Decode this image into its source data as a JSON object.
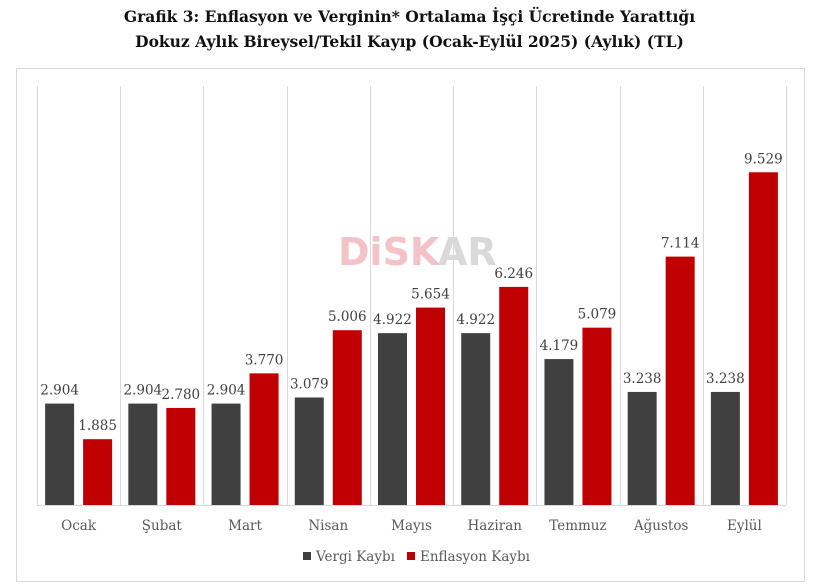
{
  "title": {
    "line1": "Grafik 3: Enflasyon ve Verginin* Ortalama İşçi Ücretinde Yarattığı",
    "line2": "Dokuz Aylık Bireysel/Tekil Kayıp (Ocak-Eylül 2025) (Aylık) (TL)"
  },
  "watermark": {
    "part1": "DiSK",
    "part2": "AR"
  },
  "chart_data": {
    "type": "bar",
    "categories": [
      "Ocak",
      "Şubat",
      "Mart",
      "Nisan",
      "Mayıs",
      "Haziran",
      "Temmuz",
      "Ağustos",
      "Eylül"
    ],
    "series": [
      {
        "name": "Vergi Kaybı",
        "color": "#404040",
        "values": [
          2904,
          2904,
          2904,
          3079,
          4922,
          4922,
          4179,
          3238,
          3238
        ],
        "labels": [
          "2.904",
          "2.904",
          "2.904",
          "3.079",
          "4.922",
          "4.922",
          "4.179",
          "3.238",
          "3.238"
        ]
      },
      {
        "name": "Enflasyon Kaybı",
        "color": "#c00000",
        "values": [
          1885,
          2780,
          3770,
          5006,
          5654,
          6246,
          5079,
          7114,
          9529
        ],
        "labels": [
          "1.885",
          "2.780",
          "3.770",
          "5.006",
          "5.654",
          "6.246",
          "5.079",
          "7.114",
          "9.529"
        ]
      }
    ],
    "ylim": [
      0,
      12000
    ],
    "grid": "vertical category separators",
    "legend": "bottom-center"
  }
}
